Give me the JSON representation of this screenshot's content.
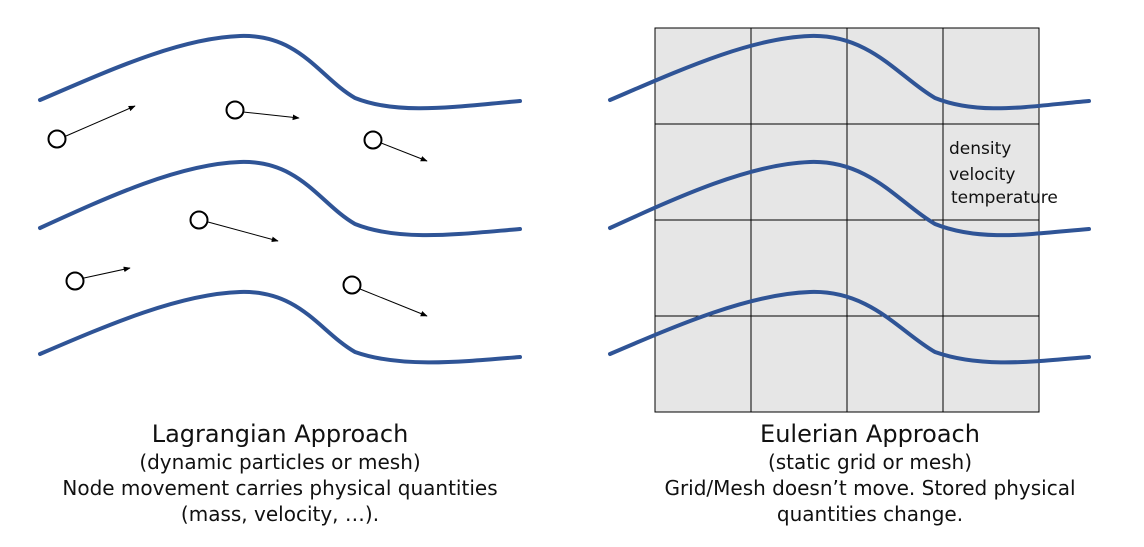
{
  "lagrangian": {
    "title": "Lagrangian Approach",
    "subtitle": "(dynamic particles or mesh)",
    "line1": "Node movement carries physical quantities",
    "line2": "(mass, velocity, …)."
  },
  "eulerian": {
    "title": "Eulerian Approach",
    "subtitle": "(static grid or mesh)",
    "line1": "Grid/Mesh doesn’t move.  Stored physical",
    "line2": "quantities change.",
    "quantities": [
      "density",
      "velocity",
      "temperature"
    ]
  },
  "colors": {
    "streamline": "#2f5496",
    "grid_fill": "#e6e6e6",
    "grid_line": "#000000"
  }
}
